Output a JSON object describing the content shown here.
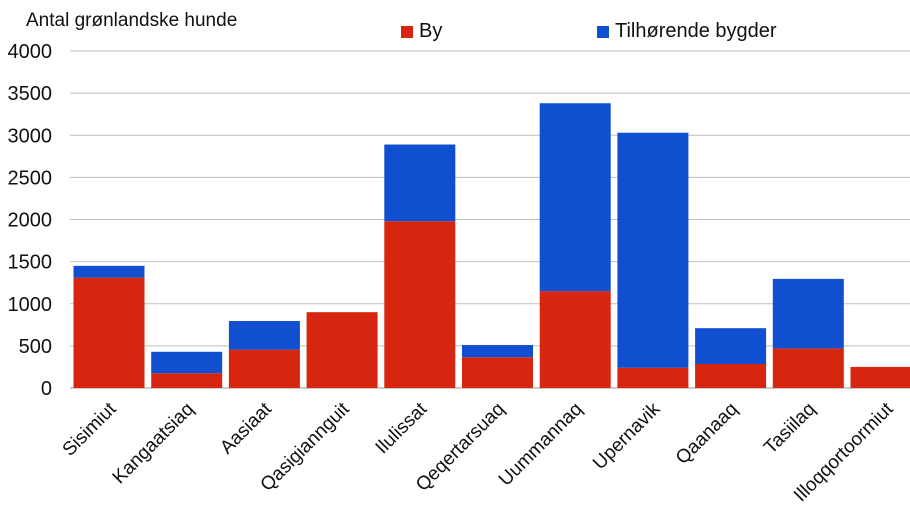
{
  "chart_data": {
    "type": "bar",
    "stacked": true,
    "ylabel": "Antal grønlandske hunde",
    "xlabel": "",
    "ylim": [
      0,
      4000
    ],
    "yticks": [
      0,
      500,
      1000,
      1500,
      2000,
      2500,
      3000,
      3500,
      4000
    ],
    "grid": true,
    "legend_position": "top",
    "categories": [
      "Sisimiut",
      "Kangaatsiaq",
      "Aasiaat",
      "Qasigiannguit",
      "Ilulissat",
      "Qeqertarsuaq",
      "Uummannaq",
      "Upernavik",
      "Qaanaaq",
      "Tasiilaq",
      "Illoqqortoormiut"
    ],
    "series": [
      {
        "name": "By",
        "color": "#d7260f",
        "values": [
          1310,
          175,
          455,
          900,
          1980,
          365,
          1150,
          240,
          285,
          470,
          250
        ]
      },
      {
        "name": "Tilhørende bygder",
        "color": "#0f4fd0",
        "values": [
          140,
          255,
          340,
          0,
          910,
          145,
          2230,
          2790,
          425,
          825,
          0
        ]
      }
    ]
  }
}
